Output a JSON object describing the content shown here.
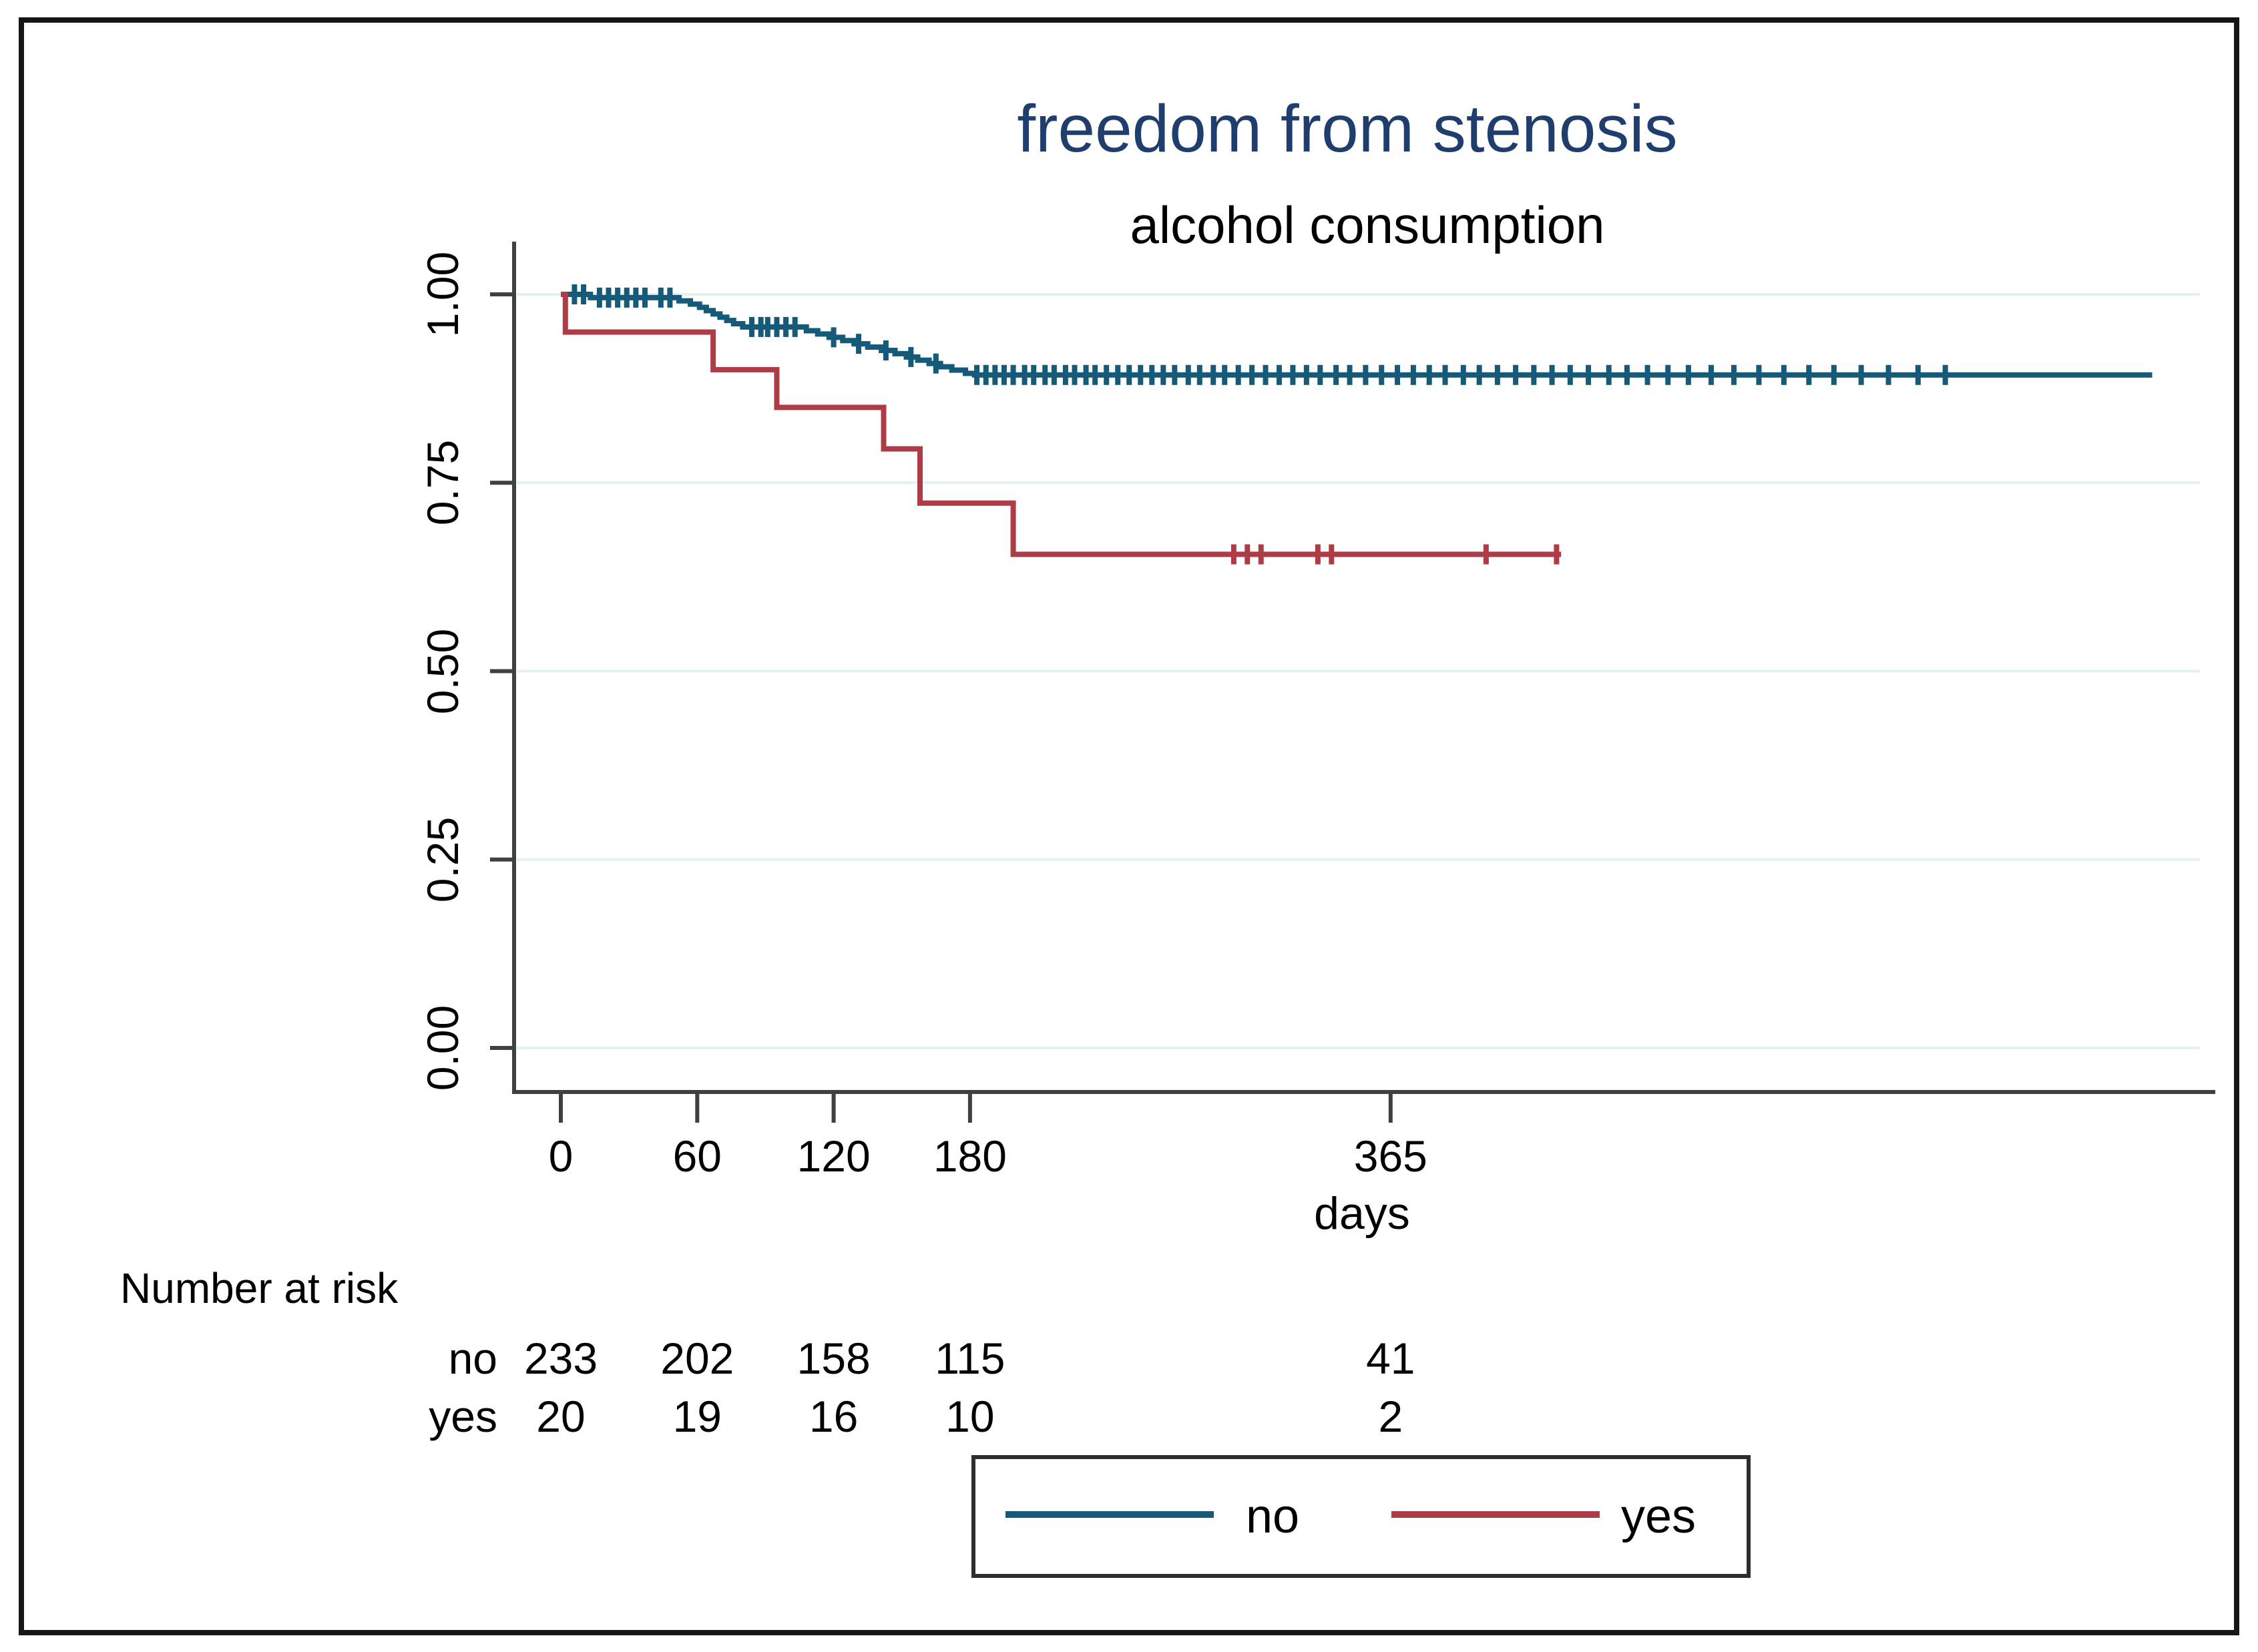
{
  "chart_data": {
    "type": "line",
    "subtype": "kaplan-meier-step",
    "title": "freedom from stenosis",
    "title_color": "#1f3d6d",
    "subtitle": "alcohol consumption",
    "xlabel": "days",
    "x_axis": {
      "tick_labels": [
        "0",
        "60",
        "120",
        "180",
        "365"
      ],
      "tick_values": [
        0,
        60,
        120,
        180,
        365
      ],
      "min": 0,
      "max": 728
    },
    "y_axis": {
      "tick_labels": [
        "1.00",
        "0.75",
        "0.50",
        "0.25",
        "0.00"
      ],
      "tick_values": [
        1,
        0.75,
        0.5,
        0.25,
        0
      ],
      "min": 0,
      "max": 1
    },
    "grid": true,
    "axis_color": "#404040",
    "grid_color": "#e2f1f1",
    "series": [
      {
        "name": "no",
        "color": "#155a78",
        "steps": [
          [
            0,
            1.0
          ],
          [
            13,
            0.9957
          ],
          [
            52,
            0.9914
          ],
          [
            57,
            0.987
          ],
          [
            61,
            0.9827
          ],
          [
            64,
            0.9784
          ],
          [
            67,
            0.974
          ],
          [
            70,
            0.9697
          ],
          [
            73,
            0.9653
          ],
          [
            76,
            0.961
          ],
          [
            80,
            0.9567
          ],
          [
            108,
            0.9517
          ],
          [
            113,
            0.9474
          ],
          [
            118,
            0.943
          ],
          [
            124,
            0.9387
          ],
          [
            129,
            0.9343
          ],
          [
            135,
            0.93
          ],
          [
            141,
            0.9256
          ],
          [
            147,
            0.9213
          ],
          [
            152,
            0.9169
          ],
          [
            157,
            0.9126
          ],
          [
            162,
            0.9082
          ],
          [
            167,
            0.9039
          ],
          [
            172,
            0.8995
          ],
          [
            178,
            0.8952
          ],
          [
            182,
            0.893
          ]
        ],
        "end_day": 700,
        "censor_days": [
          6,
          10,
          17,
          21,
          25,
          29,
          33,
          37,
          44,
          48,
          84,
          88,
          91,
          95,
          99,
          103,
          120,
          131,
          143,
          154,
          165,
          183,
          187,
          191,
          195,
          199,
          204,
          208,
          213,
          217,
          222,
          226,
          231,
          235,
          240,
          245,
          250,
          255,
          260,
          265,
          270,
          276,
          281,
          287,
          292,
          298,
          304,
          310,
          316,
          322,
          328,
          334,
          341,
          347,
          354,
          361,
          368,
          375,
          382,
          389,
          397,
          404,
          412,
          420,
          428,
          436,
          444,
          452,
          461,
          469,
          478,
          487,
          496,
          506,
          516,
          527,
          538,
          549,
          560,
          572,
          584,
          597,
          609
        ]
      },
      {
        "name": "yes",
        "color": "#ad3c47",
        "steps": [
          [
            0,
            1.0
          ],
          [
            2,
            0.95
          ],
          [
            67,
            0.9
          ],
          [
            95,
            0.85
          ],
          [
            142,
            0.795
          ],
          [
            158,
            0.723
          ],
          [
            199,
            0.655
          ]
        ],
        "end_day": 440,
        "censor_days": [
          296,
          302,
          308,
          333,
          339,
          407,
          438
        ]
      }
    ],
    "legend": {
      "position": "bottom",
      "items": [
        {
          "label": "no",
          "color": "#155a78"
        },
        {
          "label": "yes",
          "color": "#ad3c47"
        }
      ]
    },
    "risk_table": {
      "title": "Number at risk",
      "times": [
        0,
        60,
        120,
        180,
        365
      ],
      "rows": [
        {
          "label": "no",
          "counts": [
            "233",
            "202",
            "158",
            "115",
            "41"
          ]
        },
        {
          "label": "yes",
          "counts": [
            "20",
            "19",
            "16",
            "10",
            "2"
          ]
        }
      ]
    }
  }
}
